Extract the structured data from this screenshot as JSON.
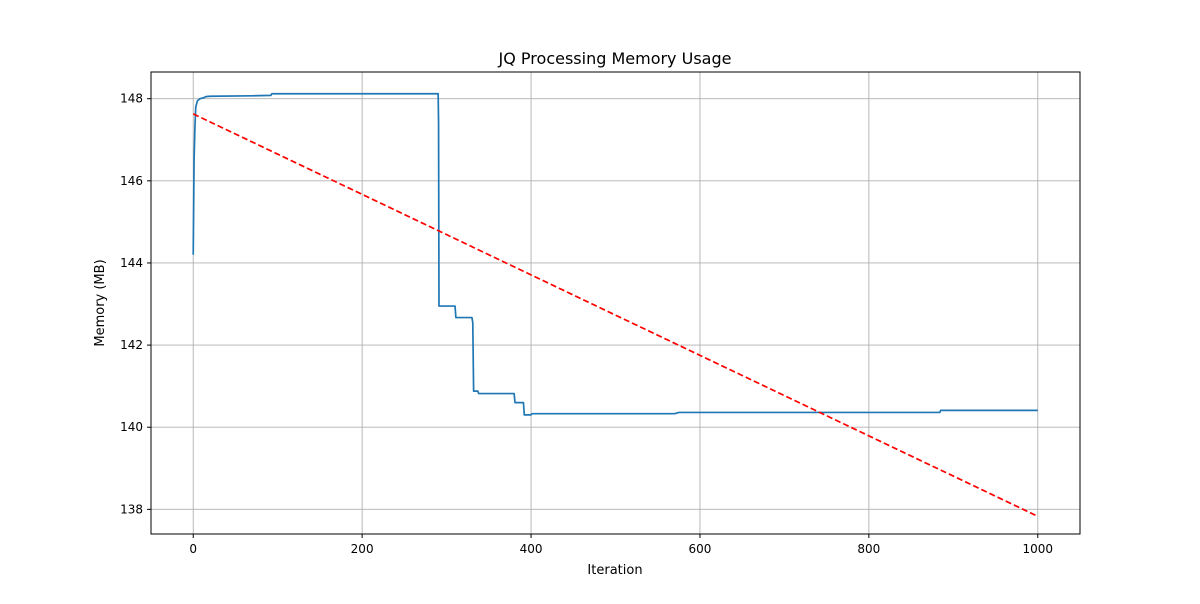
{
  "chart_data": {
    "type": "line",
    "title": "JQ Processing Memory Usage",
    "xlabel": "Iteration",
    "ylabel": "Memory (MB)",
    "xlim": [
      -50,
      1050
    ],
    "ylim": [
      137.4,
      148.65
    ],
    "x_ticks": [
      0,
      200,
      400,
      600,
      800,
      1000
    ],
    "y_ticks": [
      138,
      140,
      142,
      144,
      146,
      148
    ],
    "grid": true,
    "series": [
      {
        "style": "solid",
        "color": "#1f77b4",
        "points": [
          [
            0,
            144.2
          ],
          [
            1,
            146.5
          ],
          [
            2,
            147.3
          ],
          [
            3,
            147.8
          ],
          [
            5,
            147.95
          ],
          [
            8,
            148.0
          ],
          [
            12,
            148.02
          ],
          [
            15,
            148.05
          ],
          [
            20,
            148.06
          ],
          [
            70,
            148.07
          ],
          [
            92,
            148.08
          ],
          [
            93,
            148.12
          ],
          [
            290,
            148.12
          ],
          [
            290.5,
            147.4
          ],
          [
            291,
            142.95
          ],
          [
            310,
            142.95
          ],
          [
            311,
            142.67
          ],
          [
            330,
            142.67
          ],
          [
            331,
            142.55
          ],
          [
            332,
            140.88
          ],
          [
            337,
            140.88
          ],
          [
            338,
            140.82
          ],
          [
            380,
            140.82
          ],
          [
            381,
            140.6
          ],
          [
            391,
            140.6
          ],
          [
            392,
            140.3
          ],
          [
            400,
            140.3
          ],
          [
            401,
            140.33
          ],
          [
            570,
            140.33
          ],
          [
            575,
            140.36
          ],
          [
            884,
            140.36
          ],
          [
            885,
            140.41
          ],
          [
            1000,
            140.41
          ]
        ]
      },
      {
        "style": "dashed",
        "color": "#ff0000",
        "points": [
          [
            0,
            147.63
          ],
          [
            1000,
            137.83
          ]
        ]
      }
    ]
  },
  "colors": {
    "memory_line": "#1f77b4",
    "trend_line": "#ff0000",
    "grid": "#b0b0b0"
  }
}
